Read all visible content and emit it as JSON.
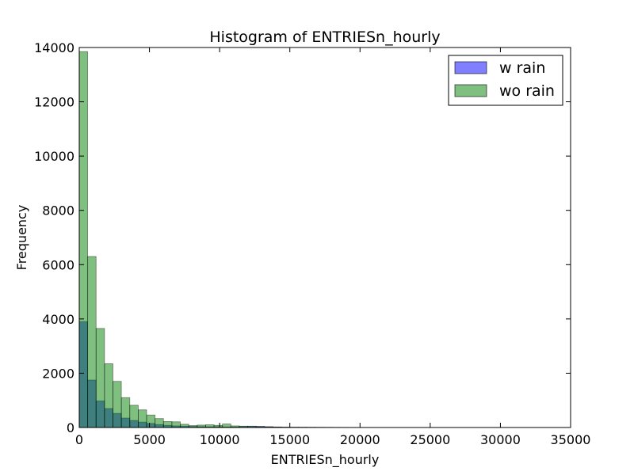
{
  "chart_data": {
    "type": "bar",
    "title": "Histogram of ENTRIESn_hourly",
    "xlabel": "ENTRIESn_hourly",
    "ylabel": "Frequency",
    "xlim": [
      0,
      35000
    ],
    "ylim": [
      0,
      14000
    ],
    "xticks": [
      "0",
      "5000",
      "10000",
      "15000",
      "20000",
      "25000",
      "30000",
      "35000"
    ],
    "yticks": [
      "0",
      "2000",
      "4000",
      "6000",
      "8000",
      "10000",
      "12000",
      "14000"
    ],
    "bin_width": 600,
    "legend_position": "top-right",
    "series": [
      {
        "name": "w rain",
        "color": "#0000ff",
        "values": [
          3900,
          1750,
          980,
          700,
          520,
          350,
          260,
          200,
          150,
          110,
          80,
          60,
          50,
          40,
          30,
          25,
          30,
          20,
          20,
          40,
          50,
          45,
          30,
          20,
          15,
          10,
          10,
          8,
          6,
          5,
          4,
          3,
          2,
          2,
          2,
          1,
          1,
          1,
          1,
          1,
          1,
          1,
          0,
          0,
          0,
          0,
          0,
          0,
          0,
          0,
          0,
          0,
          0,
          0,
          0
        ]
      },
      {
        "name": "wo rain",
        "color": "#008000",
        "values": [
          13850,
          6300,
          3650,
          2350,
          1700,
          1100,
          820,
          650,
          460,
          330,
          220,
          210,
          120,
          70,
          90,
          100,
          80,
          130,
          60,
          50,
          40,
          30,
          25,
          18,
          14,
          12,
          10,
          8,
          7,
          6,
          5,
          4,
          3,
          3,
          3,
          2,
          2,
          2,
          1,
          1,
          1,
          1,
          1,
          1,
          1,
          1,
          1,
          1,
          1,
          1,
          1,
          1,
          1,
          1,
          1
        ]
      }
    ]
  }
}
